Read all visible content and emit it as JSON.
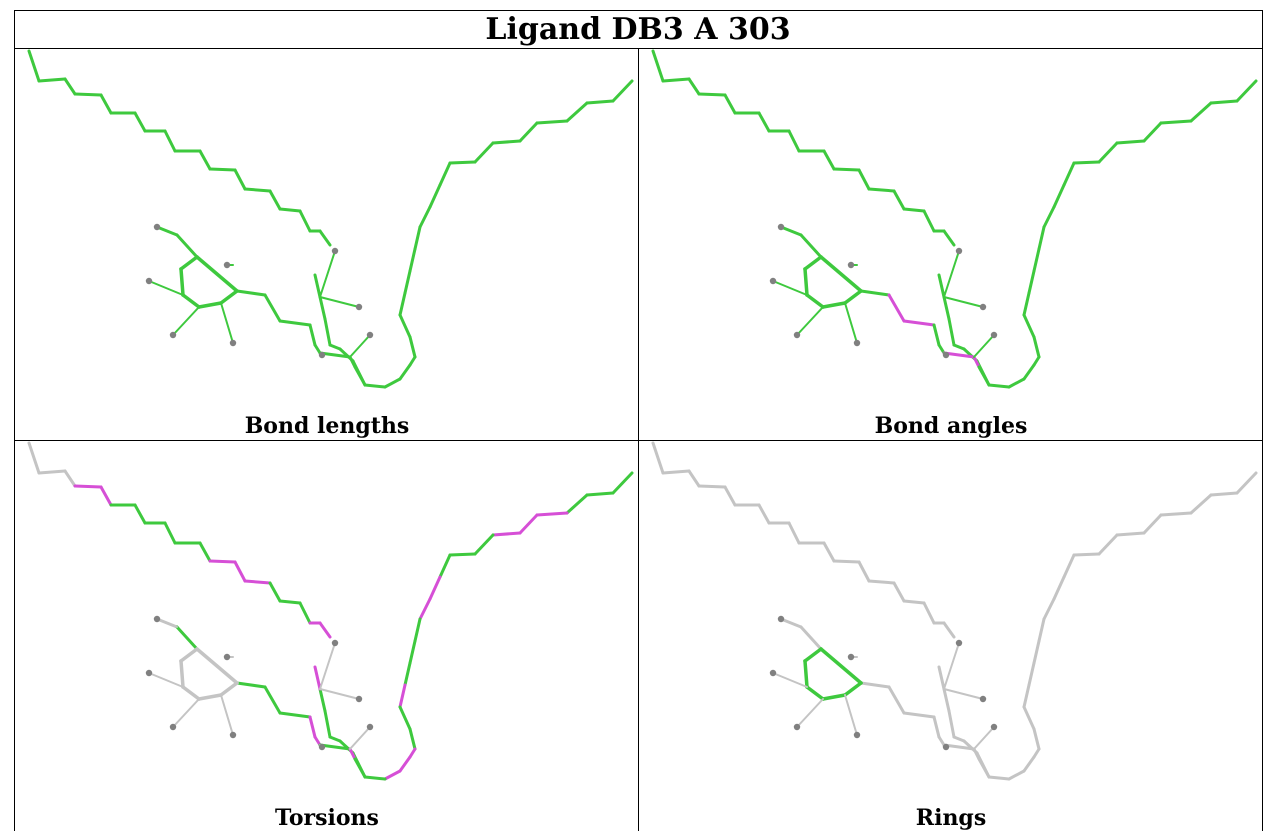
{
  "title": "Ligand DB3 A 303",
  "colors": {
    "ok": "#3ec93e",
    "outlier": "#d64fd6",
    "na": "#c4c4c4",
    "atom": "#808080",
    "border": "#000000"
  },
  "panels": [
    {
      "caption": "Bond lengths",
      "chain_left": [
        "ok"
      ],
      "chain_right": [
        "ok"
      ],
      "stub": [
        "ok"
      ],
      "link_a": [
        "ok"
      ],
      "link_b": [
        "ok"
      ],
      "ring": "ok",
      "hydrogens": "ok"
    },
    {
      "caption": "Bond angles",
      "chain_left": [
        "ok"
      ],
      "chain_right": [
        "ok"
      ],
      "stub": [
        "ok"
      ],
      "link_a": [
        "ok",
        "outlier",
        "outlier",
        "ok"
      ],
      "link_b": [
        "ok",
        "outlier",
        "outlier",
        "ok"
      ],
      "ring": "ok",
      "hydrogens": "ok"
    },
    {
      "caption": "Torsions",
      "chain_left": [
        "na",
        "na",
        "outlier",
        "ok",
        "ok",
        "ok",
        "ok",
        "ok",
        "outlier",
        "outlier",
        "ok",
        "ok",
        "outlier",
        "outlier"
      ],
      "chain_right": [
        "ok",
        "ok",
        "outlier",
        "outlier",
        "ok",
        "ok",
        "outlier",
        "ok",
        "ok",
        "outlier",
        "ok",
        "outlier",
        "outlier",
        "ok",
        "ok",
        "ok",
        "ok",
        "outlier"
      ],
      "stub": [
        "na",
        "ok"
      ],
      "link_a": [
        "ok",
        "ok",
        "ok",
        "outlier"
      ],
      "link_b": [
        "outlier",
        "ok",
        "outlier",
        "ok"
      ],
      "ring": "na",
      "hydrogens": "na"
    },
    {
      "caption": "Rings",
      "chain_left": [
        "na"
      ],
      "chain_right": [
        "na"
      ],
      "stub": [
        "na"
      ],
      "link_a": [
        "na"
      ],
      "link_b": [
        "na"
      ],
      "ring": "ok",
      "hydrogens": "na"
    }
  ]
}
